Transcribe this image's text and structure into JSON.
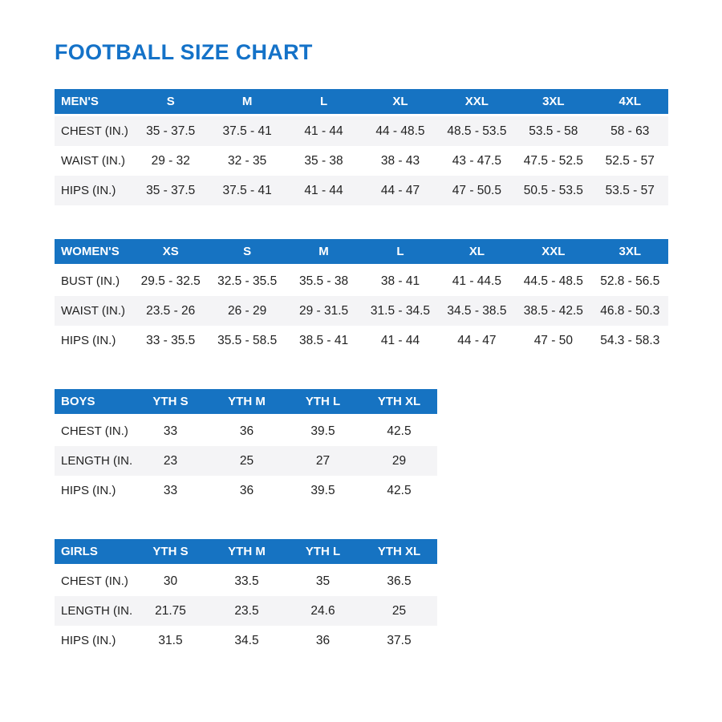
{
  "page": {
    "title": "FOOTBALL SIZE CHART"
  },
  "colors": {
    "title": "#1472c8",
    "header_bg": "#1673c2",
    "header_text": "#ffffff",
    "shaded_row": "#f4f4f6",
    "body_text": "#222222"
  },
  "tables": [
    {
      "id": "mens",
      "columns": [
        "MEN'S",
        "S",
        "M",
        "L",
        "XL",
        "XXL",
        "3XL",
        "4XL"
      ],
      "rows": [
        {
          "label": "CHEST (IN.)",
          "values": [
            "35 - 37.5",
            "37.5 - 41",
            "41 - 44",
            "44 - 48.5",
            "48.5 - 53.5",
            "53.5 - 58",
            "58 - 63"
          ]
        },
        {
          "label": "WAIST (IN.)",
          "values": [
            "29 - 32",
            "32 - 35",
            "35 - 38",
            "38 - 43",
            "43 - 47.5",
            "47.5 - 52.5",
            "52.5 - 57"
          ]
        },
        {
          "label": "HIPS (IN.)",
          "values": [
            "35 - 37.5",
            "37.5 - 41",
            "41 - 44",
            "44 - 47",
            "47 - 50.5",
            "50.5 - 53.5",
            "53.5 - 57"
          ]
        }
      ],
      "width": "wide",
      "shade": "odd"
    },
    {
      "id": "womens",
      "columns": [
        "WOMEN'S",
        "XS",
        "S",
        "M",
        "L",
        "XL",
        "XXL",
        "3XL"
      ],
      "rows": [
        {
          "label": "BUST (IN.)",
          "values": [
            "29.5 - 32.5",
            "32.5 - 35.5",
            "35.5 - 38",
            "38 - 41",
            "41 - 44.5",
            "44.5 - 48.5",
            "52.8 - 56.5"
          ]
        },
        {
          "label": "WAIST (IN.)",
          "values": [
            "23.5 - 26",
            "26 - 29",
            "29 - 31.5",
            "31.5 - 34.5",
            "34.5 - 38.5",
            "38.5 - 42.5",
            "46.8 - 50.3"
          ]
        },
        {
          "label": "HIPS (IN.)",
          "values": [
            "33 - 35.5",
            "35.5 - 58.5",
            "38.5 - 41",
            "41 - 44",
            "44 - 47",
            "47 - 50",
            "54.3 - 58.3"
          ]
        }
      ],
      "width": "wide",
      "shade": "even"
    },
    {
      "id": "boys",
      "columns": [
        "BOYS",
        "YTH S",
        "YTH M",
        "YTH L",
        "YTH XL"
      ],
      "rows": [
        {
          "label": "CHEST (IN.)",
          "values": [
            "33",
            "36",
            "39.5",
            "42.5"
          ]
        },
        {
          "label": "LENGTH (IN.)",
          "values": [
            "23",
            "25",
            "27",
            "29"
          ]
        },
        {
          "label": "HIPS (IN.)",
          "values": [
            "33",
            "36",
            "39.5",
            "42.5"
          ]
        }
      ],
      "width": "narrow",
      "shade": "even"
    },
    {
      "id": "girls",
      "columns": [
        "GIRLS",
        "YTH S",
        "YTH M",
        "YTH L",
        "YTH XL"
      ],
      "rows": [
        {
          "label": "CHEST (IN.)",
          "values": [
            "30",
            "33.5",
            "35",
            "36.5"
          ]
        },
        {
          "label": "LENGTH (IN.)",
          "values": [
            "21.75",
            "23.5",
            "24.6",
            "25"
          ]
        },
        {
          "label": "HIPS (IN.)",
          "values": [
            "31.5",
            "34.5",
            "36",
            "37.5"
          ]
        }
      ],
      "width": "narrow",
      "shade": "even"
    }
  ]
}
